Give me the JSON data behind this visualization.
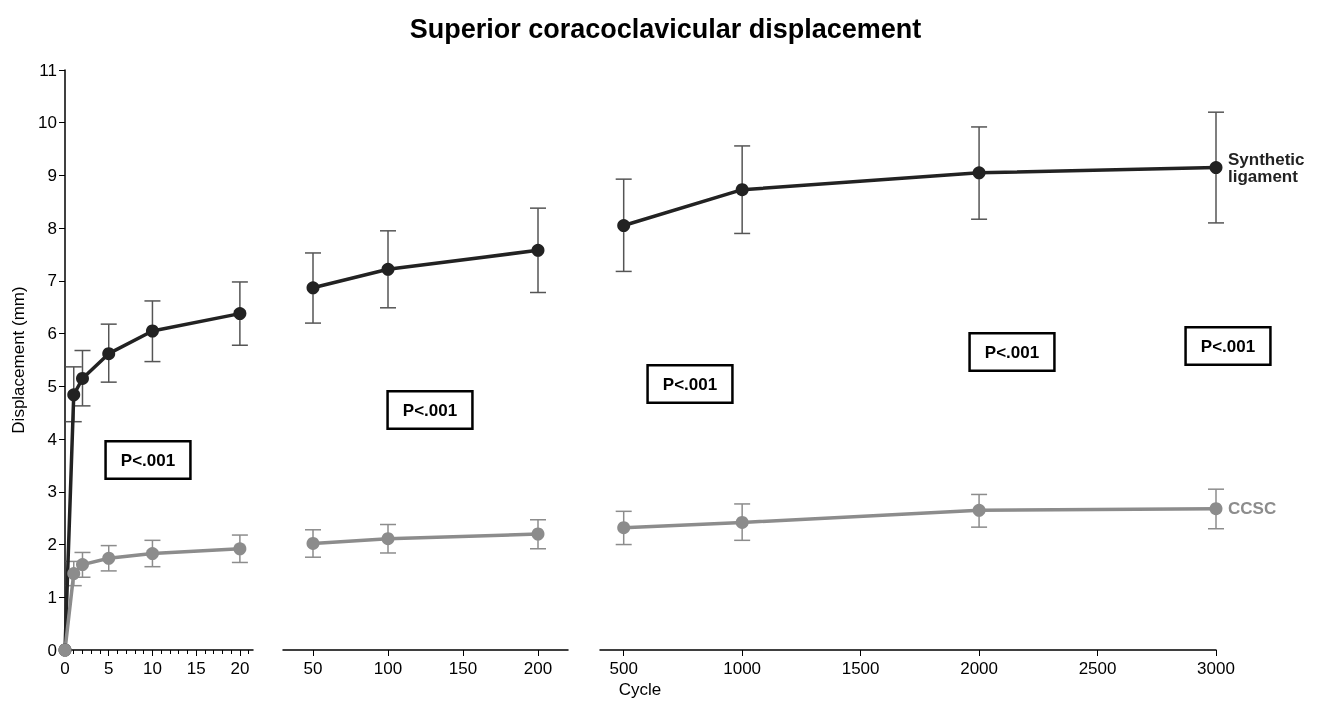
{
  "chart_data": [
    {
      "type": "line",
      "ylabel": "Displacement (mm)",
      "xlim": [
        0,
        21.5
      ],
      "xticks": [
        0,
        5,
        10,
        15,
        20
      ],
      "ylim": [
        0,
        11
      ],
      "yticks": [
        0,
        1,
        2,
        3,
        4,
        5,
        6,
        7,
        8,
        9,
        10,
        11
      ],
      "marker": "circle",
      "annotations": [
        "P<.001"
      ],
      "series": [
        {
          "color": "#222222",
          "x": [
            0,
            1,
            2,
            5,
            10,
            20
          ],
          "values": [
            0,
            4.84,
            5.15,
            5.62,
            6.05,
            6.38
          ],
          "errors": [
            null,
            [
              4.33,
              5.37
            ],
            [
              4.63,
              5.68
            ],
            [
              5.08,
              6.18
            ],
            [
              5.47,
              6.62
            ],
            [
              5.78,
              6.98
            ]
          ]
        },
        {
          "color": "#8c8c8c",
          "x": [
            0,
            1,
            2,
            5,
            10,
            20
          ],
          "values": [
            0,
            1.45,
            1.62,
            1.74,
            1.83,
            1.92
          ],
          "errors": [
            null,
            [
              1.22,
              1.68
            ],
            [
              1.38,
              1.85
            ],
            [
              1.5,
              1.98
            ],
            [
              1.58,
              2.08
            ],
            [
              1.66,
              2.18
            ]
          ]
        }
      ]
    },
    {
      "type": "line",
      "xlim": [
        30,
        220
      ],
      "xticks": [
        50,
        100,
        150,
        200
      ],
      "ylim": [
        0,
        11
      ],
      "tick_labels": "x",
      "marker": "circle",
      "annotations": [
        "P<.001"
      ],
      "series": [
        {
          "color": "#222222",
          "x": [
            50,
            100,
            200
          ],
          "values": [
            6.87,
            7.22,
            7.58
          ],
          "errors": [
            [
              6.2,
              7.53
            ],
            [
              6.49,
              7.95
            ],
            [
              6.78,
              8.38
            ]
          ]
        },
        {
          "color": "#8c8c8c",
          "x": [
            50,
            100,
            200
          ],
          "values": [
            2.02,
            2.11,
            2.2
          ],
          "errors": [
            [
              1.76,
              2.28
            ],
            [
              1.84,
              2.38
            ],
            [
              1.92,
              2.47
            ]
          ]
        }
      ]
    },
    {
      "type": "line",
      "title": "Superior coracoclavicular displacement",
      "xlabel": "Cycle",
      "xlim": [
        400,
        3000
      ],
      "xticks": [
        500,
        1000,
        1500,
        2000,
        2500,
        3000
      ],
      "ylim": [
        0,
        11
      ],
      "tick_labels": "x",
      "marker": "circle",
      "annotations": [
        "P<.001",
        "P<.001",
        "P<.001"
      ],
      "series": [
        {
          "name": "Synthetic ligament",
          "color": "#222222",
          "x": [
            500,
            1000,
            2000,
            3000
          ],
          "values": [
            8.05,
            8.73,
            9.05,
            9.15
          ],
          "errors": [
            [
              7.18,
              8.93
            ],
            [
              7.9,
              9.56
            ],
            [
              8.17,
              9.92
            ],
            [
              8.1,
              10.2
            ]
          ]
        },
        {
          "name": "CCSC",
          "color": "#8c8c8c",
          "x": [
            500,
            1000,
            2000,
            3000
          ],
          "values": [
            2.32,
            2.42,
            2.65,
            2.68
          ],
          "errors": [
            [
              2.0,
              2.63
            ],
            [
              2.08,
              2.77
            ],
            [
              2.33,
              2.95
            ],
            [
              2.3,
              3.05
            ]
          ]
        }
      ]
    }
  ]
}
